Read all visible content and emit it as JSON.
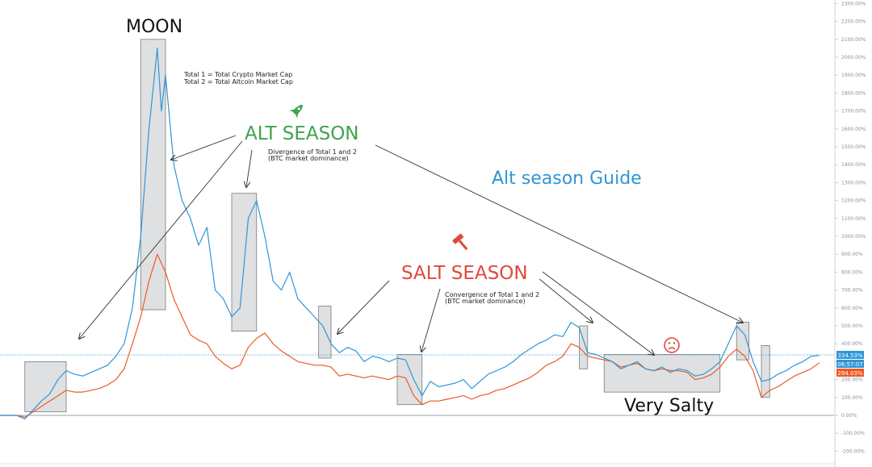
{
  "chart_data": {
    "type": "line",
    "title": "Alt season Guide",
    "ylabel": "",
    "xlabel": "",
    "grid": false,
    "log_scale": false,
    "y_unit": "%",
    "ylim": [
      -250,
      2300
    ],
    "y_ticks": [
      "2300.00%",
      "2200.00%",
      "2100.00%",
      "2000.00%",
      "1900.00%",
      "1800.00%",
      "1700.00%",
      "1600.00%",
      "1500.00%",
      "1400.00%",
      "1300.00%",
      "1200.00%",
      "1100.00%",
      "1000.00%",
      "900.00%",
      "800.00%",
      "700.00%",
      "600.00%",
      "500.00%",
      "400.00%",
      "300.00%",
      "200.00%",
      "100.00%",
      "0.00%",
      "-100.00%",
      "-200.00%"
    ],
    "x_range": [
      0,
      100
    ],
    "baseline_value": 0,
    "reference_line_value": 334.53,
    "series": [
      {
        "color": "#2f96d6",
        "points": [
          [
            0,
            0
          ],
          [
            2,
            0
          ],
          [
            3,
            -20
          ],
          [
            4,
            30
          ],
          [
            5,
            80
          ],
          [
            6,
            120
          ],
          [
            7,
            200
          ],
          [
            8,
            250
          ],
          [
            9,
            230
          ],
          [
            10,
            220
          ],
          [
            11,
            240
          ],
          [
            12,
            260
          ],
          [
            13,
            280
          ],
          [
            14,
            330
          ],
          [
            15,
            400
          ],
          [
            16,
            600
          ],
          [
            17,
            1000
          ],
          [
            18,
            1600
          ],
          [
            19,
            2050
          ],
          [
            19.5,
            1700
          ],
          [
            20,
            1900
          ],
          [
            21,
            1400
          ],
          [
            22,
            1200
          ],
          [
            23,
            1100
          ],
          [
            24,
            950
          ],
          [
            25,
            1050
          ],
          [
            26,
            700
          ],
          [
            27,
            650
          ],
          [
            28,
            550
          ],
          [
            29,
            600
          ],
          [
            30,
            1100
          ],
          [
            31,
            1200
          ],
          [
            32,
            1000
          ],
          [
            33,
            750
          ],
          [
            34,
            700
          ],
          [
            35,
            800
          ],
          [
            36,
            650
          ],
          [
            37,
            600
          ],
          [
            38,
            550
          ],
          [
            39,
            500
          ],
          [
            40,
            400
          ],
          [
            41,
            350
          ],
          [
            42,
            380
          ],
          [
            43,
            360
          ],
          [
            44,
            300
          ],
          [
            45,
            330
          ],
          [
            46,
            320
          ],
          [
            47,
            300
          ],
          [
            48,
            320
          ],
          [
            49,
            310
          ],
          [
            50,
            200
          ],
          [
            51,
            110
          ],
          [
            52,
            190
          ],
          [
            53,
            160
          ],
          [
            54,
            170
          ],
          [
            55,
            180
          ],
          [
            56,
            200
          ],
          [
            57,
            150
          ],
          [
            58,
            190
          ],
          [
            59,
            230
          ],
          [
            60,
            250
          ],
          [
            61,
            270
          ],
          [
            62,
            300
          ],
          [
            63,
            340
          ],
          [
            64,
            370
          ],
          [
            65,
            400
          ],
          [
            66,
            420
          ],
          [
            67,
            450
          ],
          [
            68,
            440
          ],
          [
            69,
            520
          ],
          [
            70,
            490
          ],
          [
            71,
            350
          ],
          [
            72,
            340
          ],
          [
            73,
            320
          ],
          [
            74,
            300
          ],
          [
            75,
            260
          ],
          [
            76,
            280
          ],
          [
            77,
            300
          ],
          [
            78,
            260
          ],
          [
            79,
            250
          ],
          [
            80,
            270
          ],
          [
            81,
            240
          ],
          [
            82,
            260
          ],
          [
            83,
            250
          ],
          [
            84,
            220
          ],
          [
            85,
            230
          ],
          [
            86,
            260
          ],
          [
            87,
            300
          ],
          [
            88,
            400
          ],
          [
            89,
            500
          ],
          [
            90,
            450
          ],
          [
            91,
            300
          ],
          [
            92,
            190
          ],
          [
            93,
            200
          ],
          [
            94,
            230
          ],
          [
            95,
            250
          ],
          [
            96,
            280
          ],
          [
            97,
            300
          ],
          [
            98,
            330
          ],
          [
            99,
            334.53
          ]
        ]
      },
      {
        "color": "#ec5a24",
        "points": [
          [
            0,
            0
          ],
          [
            2,
            0
          ],
          [
            3,
            -10
          ],
          [
            4,
            20
          ],
          [
            5,
            50
          ],
          [
            6,
            80
          ],
          [
            7,
            110
          ],
          [
            8,
            140
          ],
          [
            9,
            130
          ],
          [
            10,
            130
          ],
          [
            11,
            140
          ],
          [
            12,
            150
          ],
          [
            13,
            170
          ],
          [
            14,
            200
          ],
          [
            15,
            260
          ],
          [
            16,
            400
          ],
          [
            17,
            550
          ],
          [
            18,
            750
          ],
          [
            19,
            900
          ],
          [
            20,
            800
          ],
          [
            21,
            650
          ],
          [
            22,
            550
          ],
          [
            23,
            450
          ],
          [
            24,
            420
          ],
          [
            25,
            400
          ],
          [
            26,
            330
          ],
          [
            27,
            290
          ],
          [
            28,
            260
          ],
          [
            29,
            280
          ],
          [
            30,
            380
          ],
          [
            31,
            430
          ],
          [
            32,
            460
          ],
          [
            33,
            400
          ],
          [
            34,
            360
          ],
          [
            35,
            330
          ],
          [
            36,
            300
          ],
          [
            37,
            290
          ],
          [
            38,
            280
          ],
          [
            39,
            280
          ],
          [
            40,
            270
          ],
          [
            41,
            220
          ],
          [
            42,
            230
          ],
          [
            43,
            220
          ],
          [
            44,
            210
          ],
          [
            45,
            220
          ],
          [
            46,
            210
          ],
          [
            47,
            200
          ],
          [
            48,
            220
          ],
          [
            49,
            210
          ],
          [
            50,
            110
          ],
          [
            51,
            60
          ],
          [
            52,
            80
          ],
          [
            53,
            80
          ],
          [
            54,
            90
          ],
          [
            55,
            100
          ],
          [
            56,
            110
          ],
          [
            57,
            90
          ],
          [
            58,
            110
          ],
          [
            59,
            120
          ],
          [
            60,
            140
          ],
          [
            61,
            150
          ],
          [
            62,
            170
          ],
          [
            63,
            190
          ],
          [
            64,
            210
          ],
          [
            65,
            240
          ],
          [
            66,
            280
          ],
          [
            67,
            300
          ],
          [
            68,
            330
          ],
          [
            69,
            400
          ],
          [
            70,
            380
          ],
          [
            71,
            330
          ],
          [
            72,
            320
          ],
          [
            73,
            310
          ],
          [
            74,
            300
          ],
          [
            75,
            270
          ],
          [
            76,
            280
          ],
          [
            77,
            290
          ],
          [
            78,
            260
          ],
          [
            79,
            250
          ],
          [
            80,
            260
          ],
          [
            81,
            250
          ],
          [
            82,
            250
          ],
          [
            83,
            240
          ],
          [
            84,
            200
          ],
          [
            85,
            210
          ],
          [
            86,
            230
          ],
          [
            87,
            270
          ],
          [
            88,
            330
          ],
          [
            89,
            370
          ],
          [
            90,
            330
          ],
          [
            91,
            250
          ],
          [
            92,
            100
          ],
          [
            93,
            140
          ],
          [
            94,
            160
          ],
          [
            95,
            190
          ],
          [
            96,
            220
          ],
          [
            97,
            240
          ],
          [
            98,
            260
          ],
          [
            99,
            294.03
          ]
        ]
      }
    ],
    "highlight_zones": [
      {
        "x": [
          3,
          8
        ],
        "y": [
          20,
          300
        ]
      },
      {
        "x": [
          17,
          20
        ],
        "y": [
          590,
          2100
        ]
      },
      {
        "x": [
          28,
          31
        ],
        "y": [
          470,
          1240
        ]
      },
      {
        "x": [
          38.5,
          40
        ],
        "y": [
          320,
          610
        ]
      },
      {
        "x": [
          48,
          51
        ],
        "y": [
          60,
          340
        ]
      },
      {
        "x": [
          70,
          71
        ],
        "y": [
          260,
          500
        ]
      },
      {
        "x": [
          73,
          87
        ],
        "y": [
          130,
          340
        ]
      },
      {
        "x": [
          89,
          90.5
        ],
        "y": [
          310,
          520
        ]
      },
      {
        "x": [
          92,
          93
        ],
        "y": [
          100,
          390
        ]
      }
    ],
    "price_labels": [
      {
        "text": "334.53%",
        "color": "#2f96d6"
      },
      {
        "text": "06:57:07",
        "color": "#2f96d6"
      },
      {
        "text": "294.03%",
        "color": "#ec5a24"
      }
    ],
    "annotations": {
      "moon": "MOON",
      "legend_line1": "Total 1 = Total Crypto Market Cap",
      "legend_line2": "Total 2 = Total Altcoin Market Cap",
      "alt_season": "ALT SEASON",
      "divergence_line1": "Divergence of Total 1 and 2",
      "divergence_line2": "(BTC market dominance)",
      "guide_title": "Alt season Guide",
      "salt_season": "SALT SEASON",
      "convergence_line1": "Convergence of Total 1 and 2",
      "convergence_line2": "(BTC market dominance)",
      "very_salty": "Very Salty"
    },
    "colors": {
      "alt_season": "#3fa34d",
      "salt_season": "#e2493b",
      "guide": "#2f96d6",
      "zone_fill": "#d9dadd",
      "zone_stroke": "#7a7a7a"
    },
    "icons": [
      "rocket-icon",
      "gavel-icon",
      "sad-face-icon"
    ]
  }
}
